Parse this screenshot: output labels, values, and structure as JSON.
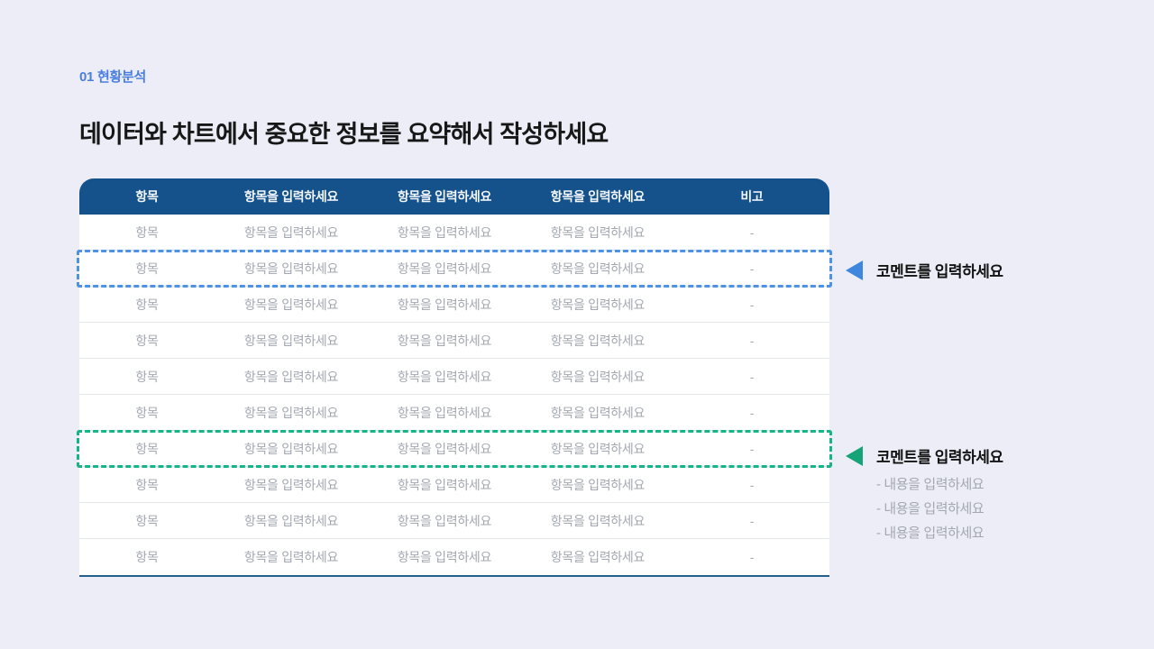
{
  "page": {
    "background": "#ECEDF6"
  },
  "header": {
    "section_label": "01 현황분석",
    "title": "데이터와 차트에서 중요한 정보를 요약해서 작성하세요"
  },
  "table": {
    "columns": [
      "항목",
      "항목을 입력하세요",
      "항목을 입력하세요",
      "항목을 입력하세요",
      "비고"
    ],
    "rows": [
      [
        "항목",
        "항목을 입력하세요",
        "항목을 입력하세요",
        "항목을 입력하세요",
        "-"
      ],
      [
        "항목",
        "항목을 입력하세요",
        "항목을 입력하세요",
        "항목을 입력하세요",
        "-"
      ],
      [
        "항목",
        "항목을 입력하세요",
        "항목을 입력하세요",
        "항목을 입력하세요",
        "-"
      ],
      [
        "항목",
        "항목을 입력하세요",
        "항목을 입력하세요",
        "항목을 입력하세요",
        "-"
      ],
      [
        "항목",
        "항목을 입력하세요",
        "항목을 입력하세요",
        "항목을 입력하세요",
        "-"
      ],
      [
        "항목",
        "항목을 입력하세요",
        "항목을 입력하세요",
        "항목을 입력하세요",
        "-"
      ],
      [
        "항목",
        "항목을 입력하세요",
        "항목을 입력하세요",
        "항목을 입력하세요",
        "-"
      ],
      [
        "항목",
        "항목을 입력하세요",
        "항목을 입력하세요",
        "항목을 입력하세요",
        "-"
      ],
      [
        "항목",
        "항목을 입력하세요",
        "항목을 입력하세요",
        "항목을 입력하세요",
        "-"
      ],
      [
        "항목",
        "항목을 입력하세요",
        "항목을 입력하세요",
        "항목을 입력하세요",
        "-"
      ]
    ],
    "header_bg": "#15518A",
    "bottom_rule_color": "#24608A",
    "highlights": [
      {
        "color": "blue",
        "hex": "#4E92E5",
        "row": 2
      },
      {
        "color": "green",
        "hex": "#16B587",
        "row": 7
      }
    ]
  },
  "callouts": [
    {
      "color": "blue",
      "hex": "#3F87DC",
      "label": "코멘트를 입력하세요",
      "items": []
    },
    {
      "color": "green",
      "hex": "#15A377",
      "label": "코멘트를 입력하세요",
      "items": [
        "- 내용을 입력하세요",
        "- 내용을 입력하세요",
        "- 내용을 입력하세요"
      ]
    }
  ],
  "colors": {
    "page_background": "#ECEDF6",
    "table_header": "#15518A",
    "row_text": "#A2A7B2",
    "row_separator": "#E3E5EC",
    "accent_blue": "#4E92E5",
    "accent_green": "#16B587",
    "section_label_blue": "#4A7FE0",
    "title_text": "#171717"
  }
}
